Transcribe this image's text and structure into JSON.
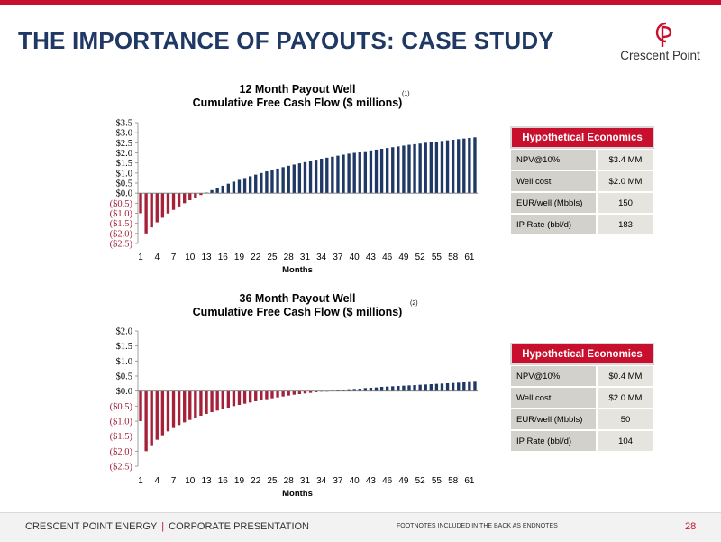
{
  "header": {
    "title": "THE IMPORTANCE OF PAYOUTS: CASE STUDY",
    "logo_text": "Crescent Point",
    "accent_color": "#c8102e",
    "title_color": "#1f3864"
  },
  "chart_data": [
    {
      "type": "bar",
      "title": "12 Month Payout Well",
      "subtitle": "Cumulative Free Cash Flow ($ millions)",
      "footnote": "(1)",
      "xlabel": "Months",
      "ylabel": "",
      "ylim": [
        -2.5,
        3.5
      ],
      "yticks": [
        "$3.5",
        "$3.0",
        "$2.5",
        "$2.0",
        "$1.5",
        "$1.0",
        "$0.5",
        "$0.0",
        "($0.5)",
        "($1.0)",
        "($1.5)",
        "($2.0)",
        "($2.5)"
      ],
      "ytick_values": [
        3.5,
        3.0,
        2.5,
        2.0,
        1.5,
        1.0,
        0.5,
        0.0,
        -0.5,
        -1.0,
        -1.5,
        -2.0,
        -2.5
      ],
      "xticks": [
        "1",
        "4",
        "7",
        "10",
        "13",
        "16",
        "19",
        "22",
        "25",
        "28",
        "31",
        "34",
        "37",
        "40",
        "43",
        "46",
        "49",
        "52",
        "55",
        "58",
        "61"
      ],
      "positive_color": "#1f3864",
      "negative_color": "#a5213a",
      "x": [
        1,
        2,
        3,
        4,
        5,
        6,
        7,
        8,
        9,
        10,
        11,
        12,
        13,
        14,
        15,
        16,
        17,
        18,
        19,
        20,
        21,
        22,
        23,
        24,
        25,
        26,
        27,
        28,
        29,
        30,
        31,
        32,
        33,
        34,
        35,
        36,
        37,
        38,
        39,
        40,
        41,
        42,
        43,
        44,
        45,
        46,
        47,
        48,
        49,
        50,
        51,
        52,
        53,
        54,
        55,
        56,
        57,
        58,
        59,
        60,
        61,
        62
      ],
      "values": [
        -1.0,
        -2.0,
        -1.7,
        -1.45,
        -1.22,
        -1.01,
        -0.83,
        -0.66,
        -0.5,
        -0.35,
        -0.22,
        -0.09,
        0.03,
        0.15,
        0.26,
        0.37,
        0.47,
        0.57,
        0.66,
        0.75,
        0.84,
        0.92,
        1.0,
        1.08,
        1.15,
        1.22,
        1.29,
        1.36,
        1.42,
        1.48,
        1.54,
        1.6,
        1.66,
        1.71,
        1.76,
        1.81,
        1.86,
        1.91,
        1.96,
        2.0,
        2.04,
        2.08,
        2.12,
        2.16,
        2.2,
        2.24,
        2.28,
        2.32,
        2.36,
        2.4,
        2.43,
        2.46,
        2.5,
        2.53,
        2.56,
        2.59,
        2.62,
        2.65,
        2.68,
        2.71,
        2.74,
        2.77
      ]
    },
    {
      "type": "bar",
      "title": "36 Month Payout Well",
      "subtitle": "Cumulative Free Cash Flow ($ millions)",
      "footnote": "(2)",
      "xlabel": "Months",
      "ylabel": "",
      "ylim": [
        -2.5,
        2.0
      ],
      "yticks": [
        "$2.0",
        "$1.5",
        "$1.0",
        "$0.5",
        "$0.0",
        "($0.5)",
        "($1.0)",
        "($1.5)",
        "($2.0)",
        "($2.5)"
      ],
      "ytick_values": [
        2.0,
        1.5,
        1.0,
        0.5,
        0.0,
        -0.5,
        -1.0,
        -1.5,
        -2.0,
        -2.5
      ],
      "xticks": [
        "1",
        "4",
        "7",
        "10",
        "13",
        "16",
        "19",
        "22",
        "25",
        "28",
        "31",
        "34",
        "37",
        "40",
        "43",
        "46",
        "49",
        "52",
        "55",
        "58",
        "61"
      ],
      "positive_color": "#1f3864",
      "negative_color": "#a5213a",
      "x": [
        1,
        2,
        3,
        4,
        5,
        6,
        7,
        8,
        9,
        10,
        11,
        12,
        13,
        14,
        15,
        16,
        17,
        18,
        19,
        20,
        21,
        22,
        23,
        24,
        25,
        26,
        27,
        28,
        29,
        30,
        31,
        32,
        33,
        34,
        35,
        36,
        37,
        38,
        39,
        40,
        41,
        42,
        43,
        44,
        45,
        46,
        47,
        48,
        49,
        50,
        51,
        52,
        53,
        54,
        55,
        56,
        57,
        58,
        59,
        60,
        61,
        62
      ],
      "values": [
        -1.0,
        -2.0,
        -1.8,
        -1.62,
        -1.47,
        -1.34,
        -1.23,
        -1.13,
        -1.04,
        -0.96,
        -0.89,
        -0.82,
        -0.76,
        -0.7,
        -0.65,
        -0.6,
        -0.55,
        -0.5,
        -0.46,
        -0.42,
        -0.38,
        -0.34,
        -0.3,
        -0.27,
        -0.24,
        -0.21,
        -0.18,
        -0.15,
        -0.12,
        -0.1,
        -0.08,
        -0.06,
        -0.04,
        -0.02,
        0.0,
        0.01,
        0.03,
        0.04,
        0.06,
        0.07,
        0.08,
        0.1,
        0.11,
        0.12,
        0.14,
        0.15,
        0.16,
        0.17,
        0.18,
        0.19,
        0.2,
        0.21,
        0.22,
        0.23,
        0.24,
        0.25,
        0.26,
        0.27,
        0.28,
        0.29,
        0.3,
        0.31
      ]
    }
  ],
  "tables": [
    {
      "header": "Hypothetical Economics",
      "rows": [
        {
          "label": "NPV@10%",
          "value": "$3.4 MM"
        },
        {
          "label": "Well cost",
          "value": "$2.0 MM"
        },
        {
          "label": "EUR/well (Mbbls)",
          "value": "150"
        },
        {
          "label": "IP Rate (bbl/d)",
          "value": "183"
        }
      ]
    },
    {
      "header": "Hypothetical Economics",
      "rows": [
        {
          "label": "NPV@10%",
          "value": "$0.4 MM"
        },
        {
          "label": "Well cost",
          "value": "$2.0 MM"
        },
        {
          "label": "EUR/well (Mbbls)",
          "value": "50"
        },
        {
          "label": "IP Rate (bbl/d)",
          "value": "104"
        }
      ]
    }
  ],
  "footer": {
    "company": "CRESCENT POINT ENERGY",
    "separator": "|",
    "presentation": "CORPORATE PRESENTATION",
    "note": "FOOTNOTES INCLUDED IN THE BACK AS ENDNOTES",
    "page": "28"
  }
}
